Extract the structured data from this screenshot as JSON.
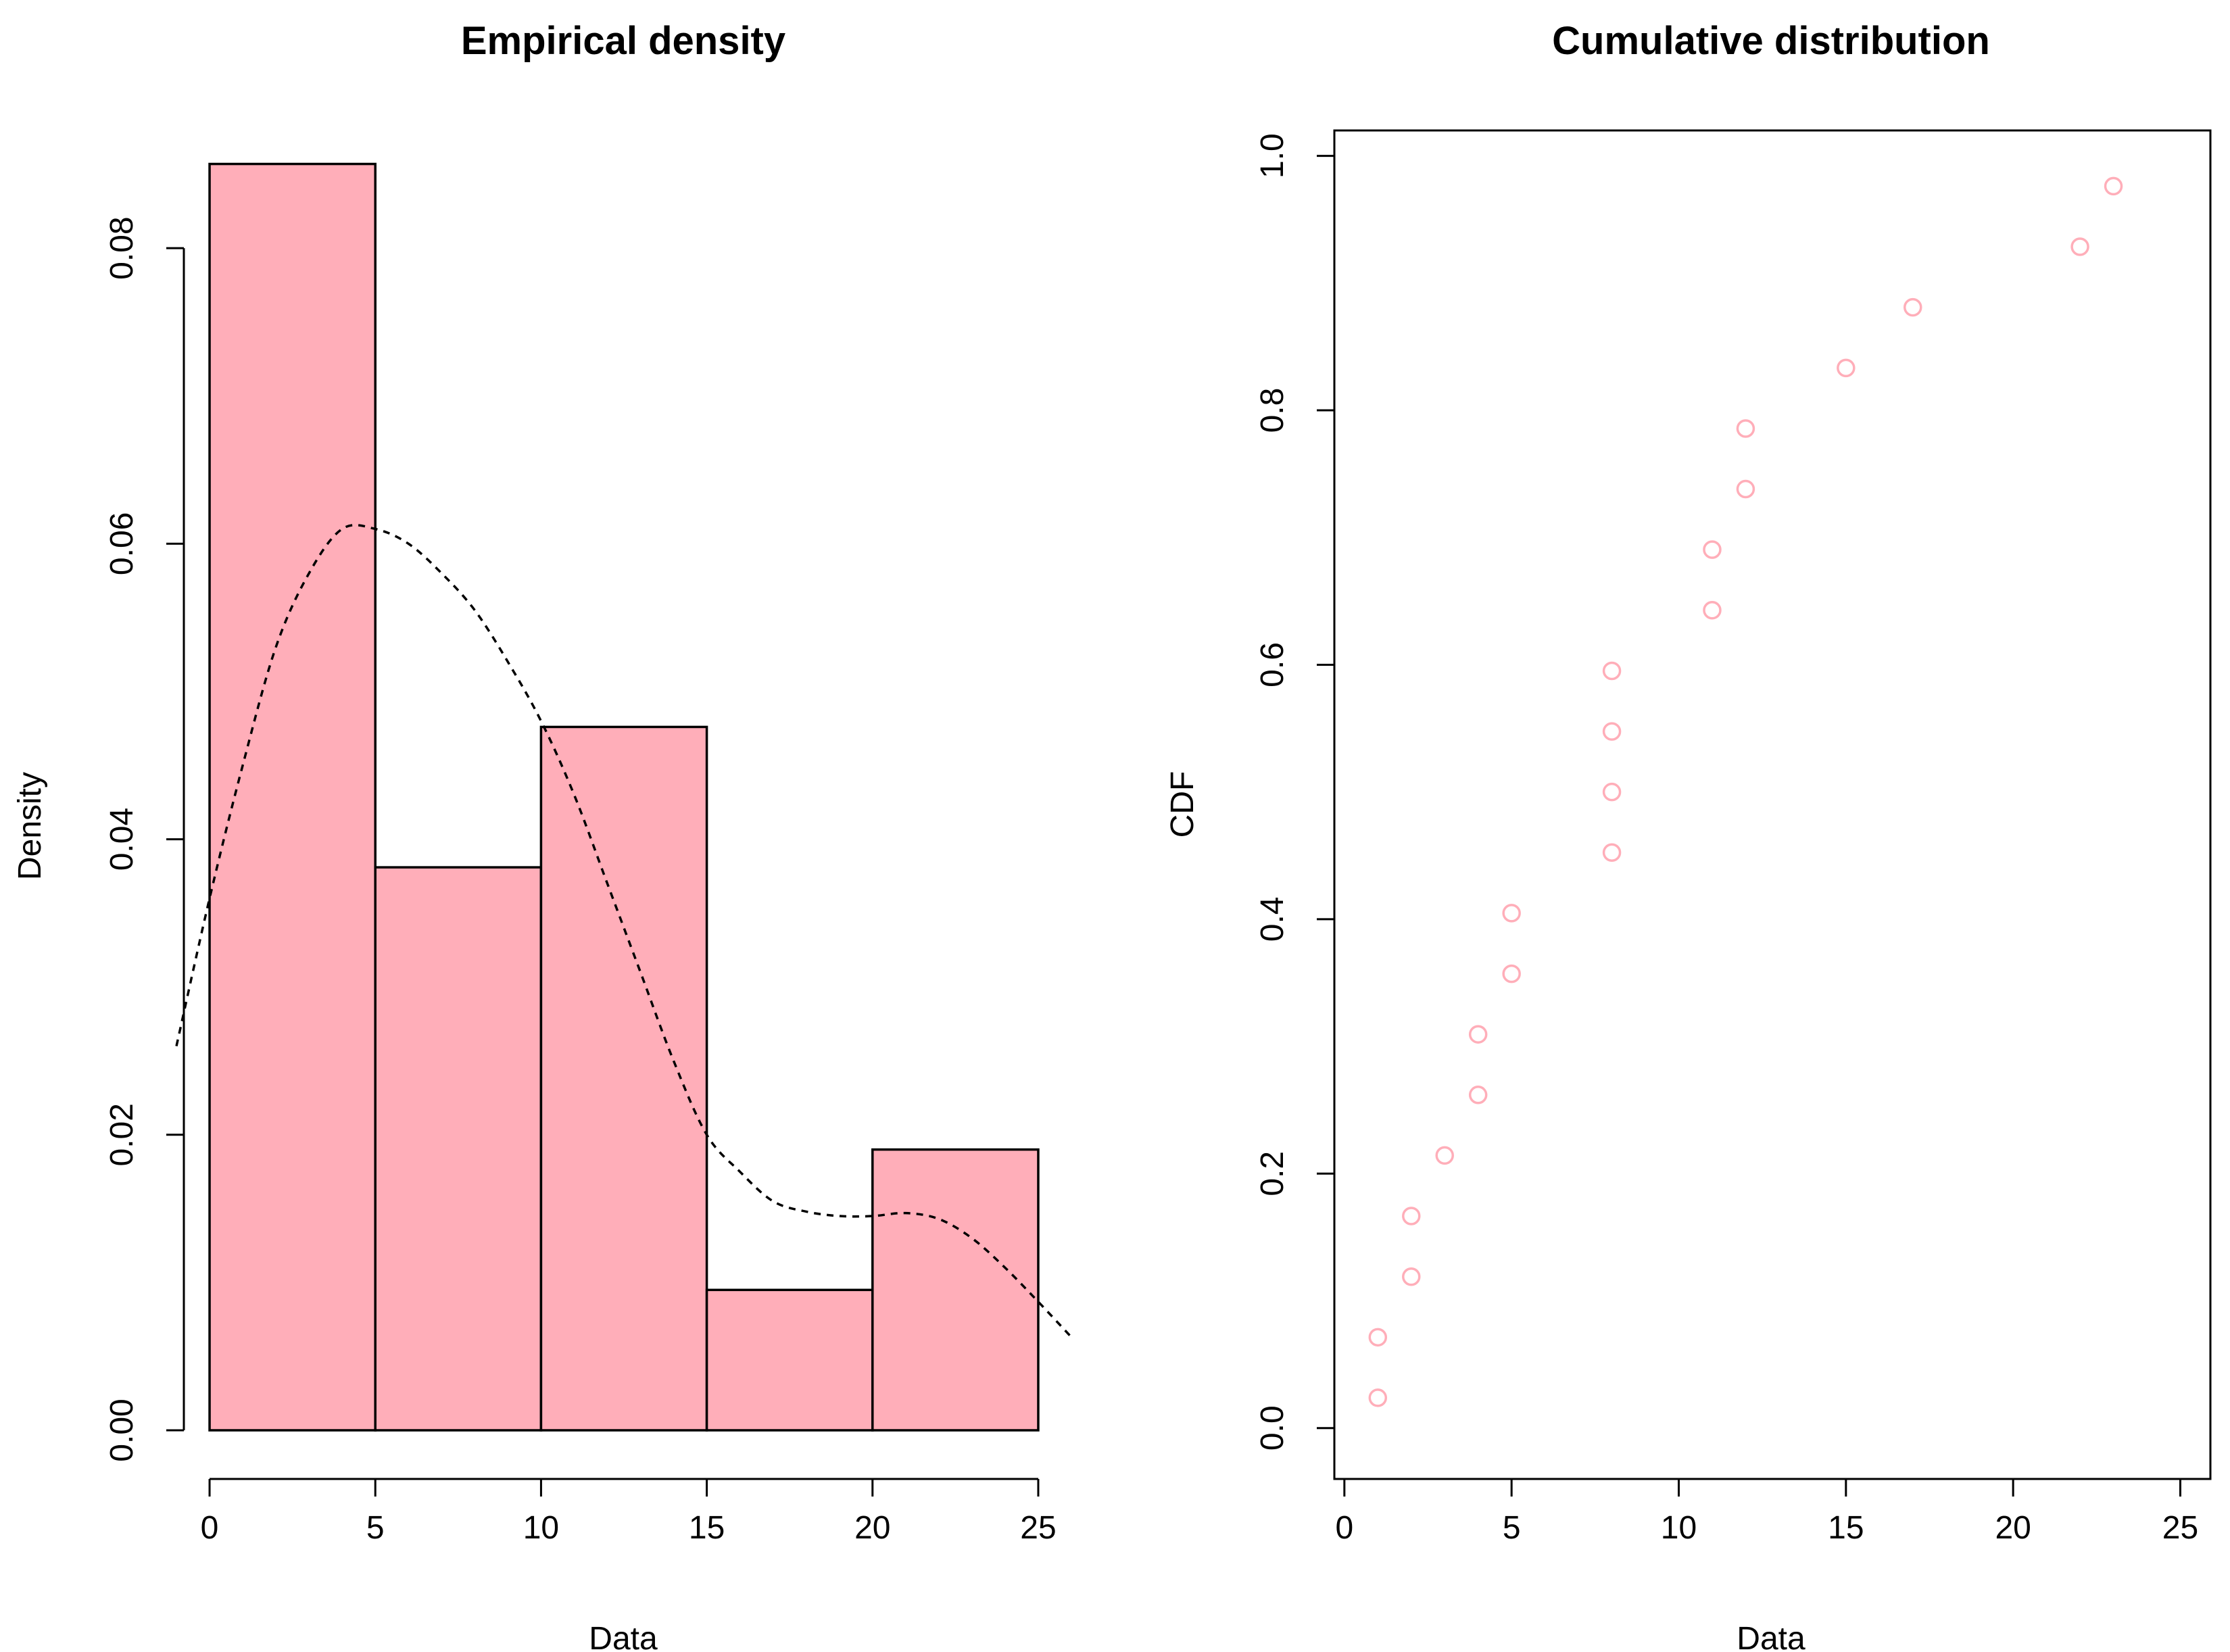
{
  "colors": {
    "bar_fill": "#FFAEB9",
    "point_stroke": "#FFAEB9"
  },
  "chart_data": [
    {
      "type": "bar",
      "title": "Empirical density",
      "xlabel": "Data",
      "ylabel": "Density",
      "bins": [
        [
          0,
          5
        ],
        [
          5,
          10
        ],
        [
          10,
          15
        ],
        [
          15,
          20
        ],
        [
          20,
          25
        ]
      ],
      "values": [
        0.0857,
        0.0381,
        0.0476,
        0.0095,
        0.019
      ],
      "density_curve": {
        "style": "dashed",
        "x": [
          -1,
          0,
          1,
          2,
          3,
          4,
          5,
          6,
          7,
          8,
          9,
          10,
          11,
          12,
          13,
          14,
          15,
          16,
          17,
          18,
          19,
          20,
          21,
          22,
          23,
          24,
          25,
          26
        ],
        "y": [
          0.026,
          0.036,
          0.045,
          0.053,
          0.058,
          0.061,
          0.061,
          0.06,
          0.058,
          0.0555,
          0.052,
          0.048,
          0.043,
          0.037,
          0.031,
          0.025,
          0.02,
          0.0175,
          0.0155,
          0.0148,
          0.0145,
          0.0145,
          0.0147,
          0.0143,
          0.013,
          0.011,
          0.0087,
          0.0063
        ]
      },
      "xlim": [
        -1,
        26
      ],
      "ylim": [
        0,
        0.086
      ],
      "xticks": [
        0,
        5,
        10,
        15,
        20,
        25
      ],
      "xtick_labels": [
        "0",
        "5",
        "10",
        "15",
        "20",
        "25"
      ],
      "yticks": [
        0,
        0.02,
        0.04,
        0.06,
        0.08
      ],
      "ytick_labels": [
        "0.00",
        "0.02",
        "0.04",
        "0.06",
        "0.08"
      ],
      "grid": false
    },
    {
      "type": "scatter",
      "title": "Cumulative distribution",
      "xlabel": "Data",
      "ylabel": "CDF",
      "x": [
        1,
        1,
        2,
        2,
        3,
        4,
        4,
        5,
        5,
        8,
        8,
        8,
        8,
        11,
        11,
        12,
        12,
        15,
        17,
        22,
        23
      ],
      "y": [
        0.0238,
        0.0714,
        0.119,
        0.1667,
        0.2143,
        0.2619,
        0.3095,
        0.3571,
        0.4048,
        0.4524,
        0.5,
        0.5476,
        0.5952,
        0.6429,
        0.6905,
        0.7381,
        0.7857,
        0.8333,
        0.881,
        0.9286,
        0.9762
      ],
      "xlim": [
        -0.3,
        25.9
      ],
      "ylim": [
        -0.04,
        1.02
      ],
      "xticks": [
        0,
        5,
        10,
        15,
        20,
        25
      ],
      "xtick_labels": [
        "0",
        "5",
        "10",
        "15",
        "20",
        "25"
      ],
      "yticks": [
        0,
        0.2,
        0.4,
        0.6,
        0.8,
        1.0
      ],
      "ytick_labels": [
        "0.0",
        "0.2",
        "0.4",
        "0.6",
        "0.8",
        "1.0"
      ],
      "grid": false
    }
  ]
}
